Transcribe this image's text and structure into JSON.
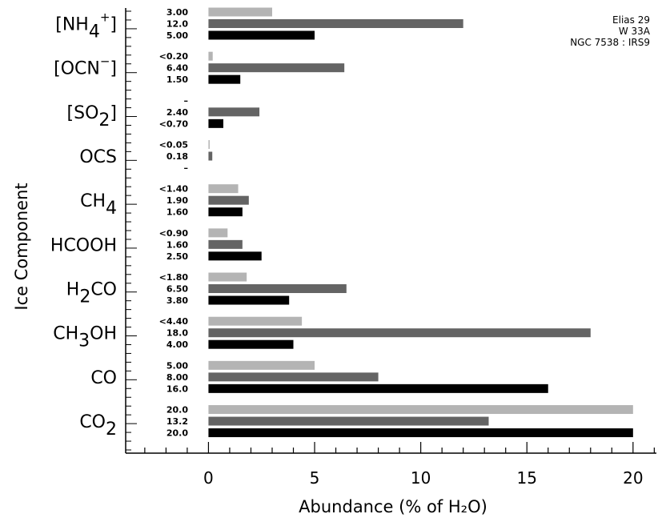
{
  "chart_data": {
    "type": "bar",
    "orientation": "horizontal",
    "xlabel": "Abundance (% of H₂O)",
    "ylabel": "Ice Component",
    "xlim": [
      -3.9,
      21.1
    ],
    "xticks": [
      "0",
      "5",
      "10",
      "15",
      "20"
    ],
    "legend_position": "top-right",
    "grid": false,
    "categories": [
      {
        "base": "[NH",
        "sub": "4",
        "sup": "+",
        "tail": "]"
      },
      {
        "base": "[OCN",
        "sub": "",
        "sup": "−",
        "tail": "]"
      },
      {
        "base": "[SO",
        "sub": "2",
        "sup": "",
        "tail": "]"
      },
      {
        "base": "OCS",
        "sub": "",
        "sup": "",
        "tail": ""
      },
      {
        "base": "CH",
        "sub": "4",
        "sup": "",
        "tail": ""
      },
      {
        "base": "HCOOH",
        "sub": "",
        "sup": "",
        "tail": ""
      },
      {
        "base": "H",
        "sub": "2",
        "sup": "",
        "tail": "CO"
      },
      {
        "base": "CH",
        "sub": "3",
        "sup": "",
        "tail": "OH"
      },
      {
        "base": "CO",
        "sub": "",
        "sup": "",
        "tail": ""
      },
      {
        "base": "CO",
        "sub": "2",
        "sup": "",
        "tail": ""
      }
    ],
    "series": [
      {
        "name": "Elias 29",
        "color": "#b4b4b4",
        "values": [
          3.0,
          0.2,
          null,
          0.05,
          1.4,
          0.9,
          1.8,
          4.4,
          5.0,
          20.0
        ],
        "labels": [
          "3.00",
          "<0.20",
          "–",
          "<0.05",
          "<1.40",
          "<0.90",
          "<1.80",
          "<4.40",
          "5.00",
          "20.0"
        ]
      },
      {
        "name": "W 33A",
        "color": "#646464",
        "values": [
          12.0,
          6.4,
          2.4,
          0.18,
          1.9,
          1.6,
          6.5,
          18.0,
          8.0,
          13.2
        ],
        "labels": [
          "12.0",
          "6.40",
          "2.40",
          "0.18",
          "1.90",
          "1.60",
          "6.50",
          "18.0",
          "8.00",
          "13.2"
        ]
      },
      {
        "name": "NGC 7538 : IRS9",
        "color": "#000000",
        "values": [
          5.0,
          1.5,
          0.7,
          null,
          1.6,
          2.5,
          3.8,
          4.0,
          16.0,
          20.0
        ],
        "labels": [
          "5.00",
          "1.50",
          "<0.70",
          "–",
          "1.60",
          "2.50",
          "3.80",
          "4.00",
          "16.0",
          "20.0"
        ]
      }
    ]
  }
}
